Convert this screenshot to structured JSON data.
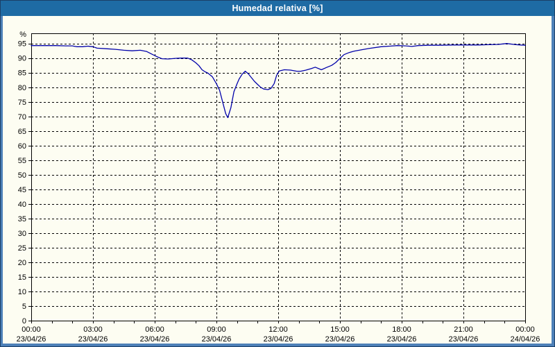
{
  "window": {
    "title": "Humedad relativa [%]"
  },
  "colors": {
    "titlebar_bg": "#1e6ba4",
    "frame_bg": "#4d80b8",
    "frame_outline": "#1b3f66",
    "content_bg": "#fdfdf2",
    "axis_color": "#000000",
    "grid_color": "#000000",
    "line_color": "#0000aa",
    "title_text_color": "#ffffff",
    "label_text_color": "#000000"
  },
  "chart_data": {
    "type": "line",
    "title": "Humedad relativa [%]",
    "ylabel": "%",
    "ylim": [
      0,
      98.5
    ],
    "y_ticks": [
      0,
      5,
      10,
      15,
      20,
      25,
      30,
      35,
      40,
      45,
      50,
      55,
      60,
      65,
      70,
      75,
      80,
      85,
      90,
      95
    ],
    "x_hours_span": 24,
    "x_minor_tick_every_hours": 1,
    "x_major_tick_every_hours": 3,
    "grid": "dashed",
    "legend_position": "none",
    "x_ticks": [
      {
        "hour": 0,
        "time": "00:00",
        "date": "23/04/26"
      },
      {
        "hour": 3,
        "time": "03:00",
        "date": "23/04/26"
      },
      {
        "hour": 6,
        "time": "06:00",
        "date": "23/04/26"
      },
      {
        "hour": 9,
        "time": "09:00",
        "date": "23/04/26"
      },
      {
        "hour": 12,
        "time": "12:00",
        "date": "23/04/26"
      },
      {
        "hour": 15,
        "time": "15:00",
        "date": "23/04/26"
      },
      {
        "hour": 18,
        "time": "18:00",
        "date": "23/04/26"
      },
      {
        "hour": 21,
        "time": "21:00",
        "date": "23/04/26"
      },
      {
        "hour": 24,
        "time": "00:00",
        "date": "24/04/26"
      }
    ],
    "series": [
      {
        "name": "Humedad relativa",
        "unit": "%",
        "color": "#0000aa",
        "points": [
          [
            0,
            94.3
          ],
          [
            0.6,
            94.3
          ],
          [
            1.2,
            94.3
          ],
          [
            1.7,
            94.2
          ],
          [
            2.0,
            94.2
          ],
          [
            2.2,
            93.9
          ],
          [
            2.5,
            93.9
          ],
          [
            2.75,
            94.1
          ],
          [
            3.0,
            93.9
          ],
          [
            3.2,
            93.4
          ],
          [
            3.7,
            93.2
          ],
          [
            4.1,
            93.0
          ],
          [
            4.5,
            92.7
          ],
          [
            4.9,
            92.5
          ],
          [
            5.3,
            92.7
          ],
          [
            5.6,
            92.3
          ],
          [
            5.85,
            91.4
          ],
          [
            6.1,
            90.5
          ],
          [
            6.35,
            89.8
          ],
          [
            6.65,
            89.7
          ],
          [
            7.0,
            89.9
          ],
          [
            7.3,
            90.0
          ],
          [
            7.6,
            90.0
          ],
          [
            7.8,
            89.4
          ],
          [
            8.0,
            88.4
          ],
          [
            8.15,
            87.4
          ],
          [
            8.3,
            86.0
          ],
          [
            8.45,
            85.3
          ],
          [
            8.6,
            84.8
          ],
          [
            8.8,
            83.6
          ],
          [
            9.0,
            81.2
          ],
          [
            9.15,
            79.0
          ],
          [
            9.3,
            75.0
          ],
          [
            9.45,
            71.0
          ],
          [
            9.55,
            69.6
          ],
          [
            9.7,
            73.0
          ],
          [
            9.85,
            78.5
          ],
          [
            10.0,
            81.2
          ],
          [
            10.1,
            82.8
          ],
          [
            10.25,
            84.5
          ],
          [
            10.4,
            85.5
          ],
          [
            10.55,
            84.6
          ],
          [
            10.7,
            83.3
          ],
          [
            10.85,
            82.0
          ],
          [
            11.0,
            81.0
          ],
          [
            11.15,
            80.0
          ],
          [
            11.3,
            79.4
          ],
          [
            11.5,
            79.2
          ],
          [
            11.65,
            79.6
          ],
          [
            11.8,
            81.2
          ],
          [
            11.92,
            84.0
          ],
          [
            12.05,
            85.6
          ],
          [
            12.3,
            86.0
          ],
          [
            12.6,
            85.9
          ],
          [
            12.9,
            85.5
          ],
          [
            13.1,
            85.5
          ],
          [
            13.35,
            85.9
          ],
          [
            13.6,
            86.4
          ],
          [
            13.8,
            86.9
          ],
          [
            14.1,
            86.0
          ],
          [
            14.35,
            86.8
          ],
          [
            14.6,
            87.5
          ],
          [
            14.8,
            88.5
          ],
          [
            15.0,
            89.9
          ],
          [
            15.2,
            91.2
          ],
          [
            15.45,
            91.9
          ],
          [
            15.7,
            92.4
          ],
          [
            16.0,
            92.8
          ],
          [
            16.4,
            93.3
          ],
          [
            17.0,
            93.9
          ],
          [
            17.4,
            94.1
          ],
          [
            17.8,
            94.3
          ],
          [
            18.2,
            94.2
          ],
          [
            18.5,
            94.0
          ],
          [
            18.8,
            94.3
          ],
          [
            19.3,
            94.4
          ],
          [
            19.9,
            94.4
          ],
          [
            20.5,
            94.5
          ],
          [
            21.1,
            94.5
          ],
          [
            21.7,
            94.5
          ],
          [
            22.2,
            94.6
          ],
          [
            22.7,
            94.7
          ],
          [
            23.1,
            95.0
          ],
          [
            23.45,
            94.7
          ],
          [
            23.75,
            94.5
          ],
          [
            24,
            94.4
          ]
        ]
      }
    ]
  }
}
